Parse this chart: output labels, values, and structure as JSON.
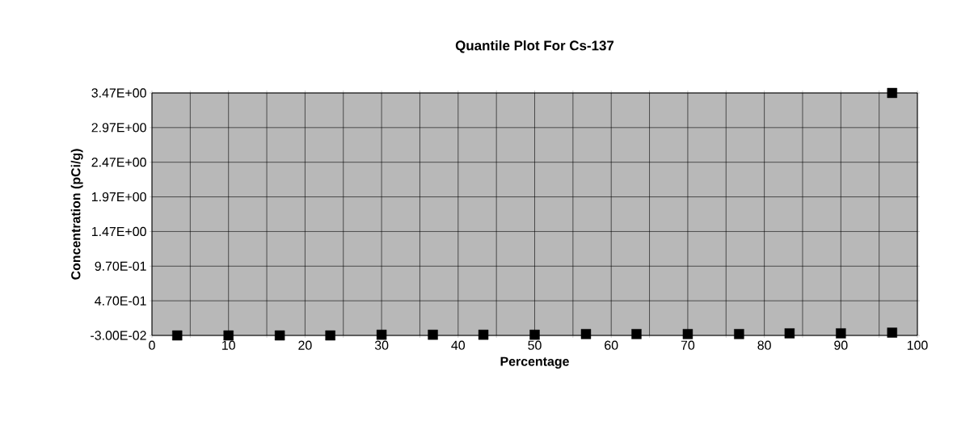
{
  "chart_data": {
    "type": "scatter",
    "title": "Quantile Plot For Cs-137",
    "xlabel": "Percentage",
    "ylabel": "Concentration (pCi/g)",
    "x": [
      3.3,
      10,
      16.7,
      23.3,
      30,
      36.7,
      43.3,
      50,
      56.7,
      63.3,
      70,
      76.7,
      83.3,
      90,
      96.7,
      96.7
    ],
    "series": [
      {
        "color": "#000000",
        "values": [
          -0.03,
          -0.03,
          -0.03,
          -0.03,
          -0.02,
          -0.02,
          -0.02,
          -0.02,
          -0.01,
          -0.01,
          -0.01,
          -0.01,
          0.0,
          0.0,
          0.01,
          3.47
        ]
      }
    ],
    "xlim": [
      0,
      100
    ],
    "ylim": [
      -0.03,
      3.47
    ],
    "xticks": [
      0,
      {
        "value": 5,
        "label": null
      },
      10,
      {
        "value": 15,
        "label": null
      },
      20,
      {
        "value": 25,
        "label": null
      },
      30,
      {
        "value": 35,
        "label": null
      },
      40,
      {
        "value": 45,
        "label": null
      },
      50,
      {
        "value": 55,
        "label": null
      },
      60,
      {
        "value": 65,
        "label": null
      },
      70,
      {
        "value": 75,
        "label": null
      },
      80,
      {
        "value": 85,
        "label": null
      },
      90,
      {
        "value": 95,
        "label": null
      },
      100
    ],
    "yticks": [
      {
        "value": -0.03,
        "label": "-3.00E-02"
      },
      {
        "value": 0.47,
        "label": "4.70E-01"
      },
      {
        "value": 0.97,
        "label": "9.70E-01"
      },
      {
        "value": 1.47,
        "label": "1.47E+00"
      },
      {
        "value": 1.97,
        "label": "1.97E+00"
      },
      {
        "value": 2.47,
        "label": "2.47E+00"
      },
      {
        "value": 2.97,
        "label": "2.97E+00"
      },
      {
        "value": 3.47,
        "label": "3.47E+00"
      }
    ],
    "grid": true,
    "marker": "square"
  }
}
